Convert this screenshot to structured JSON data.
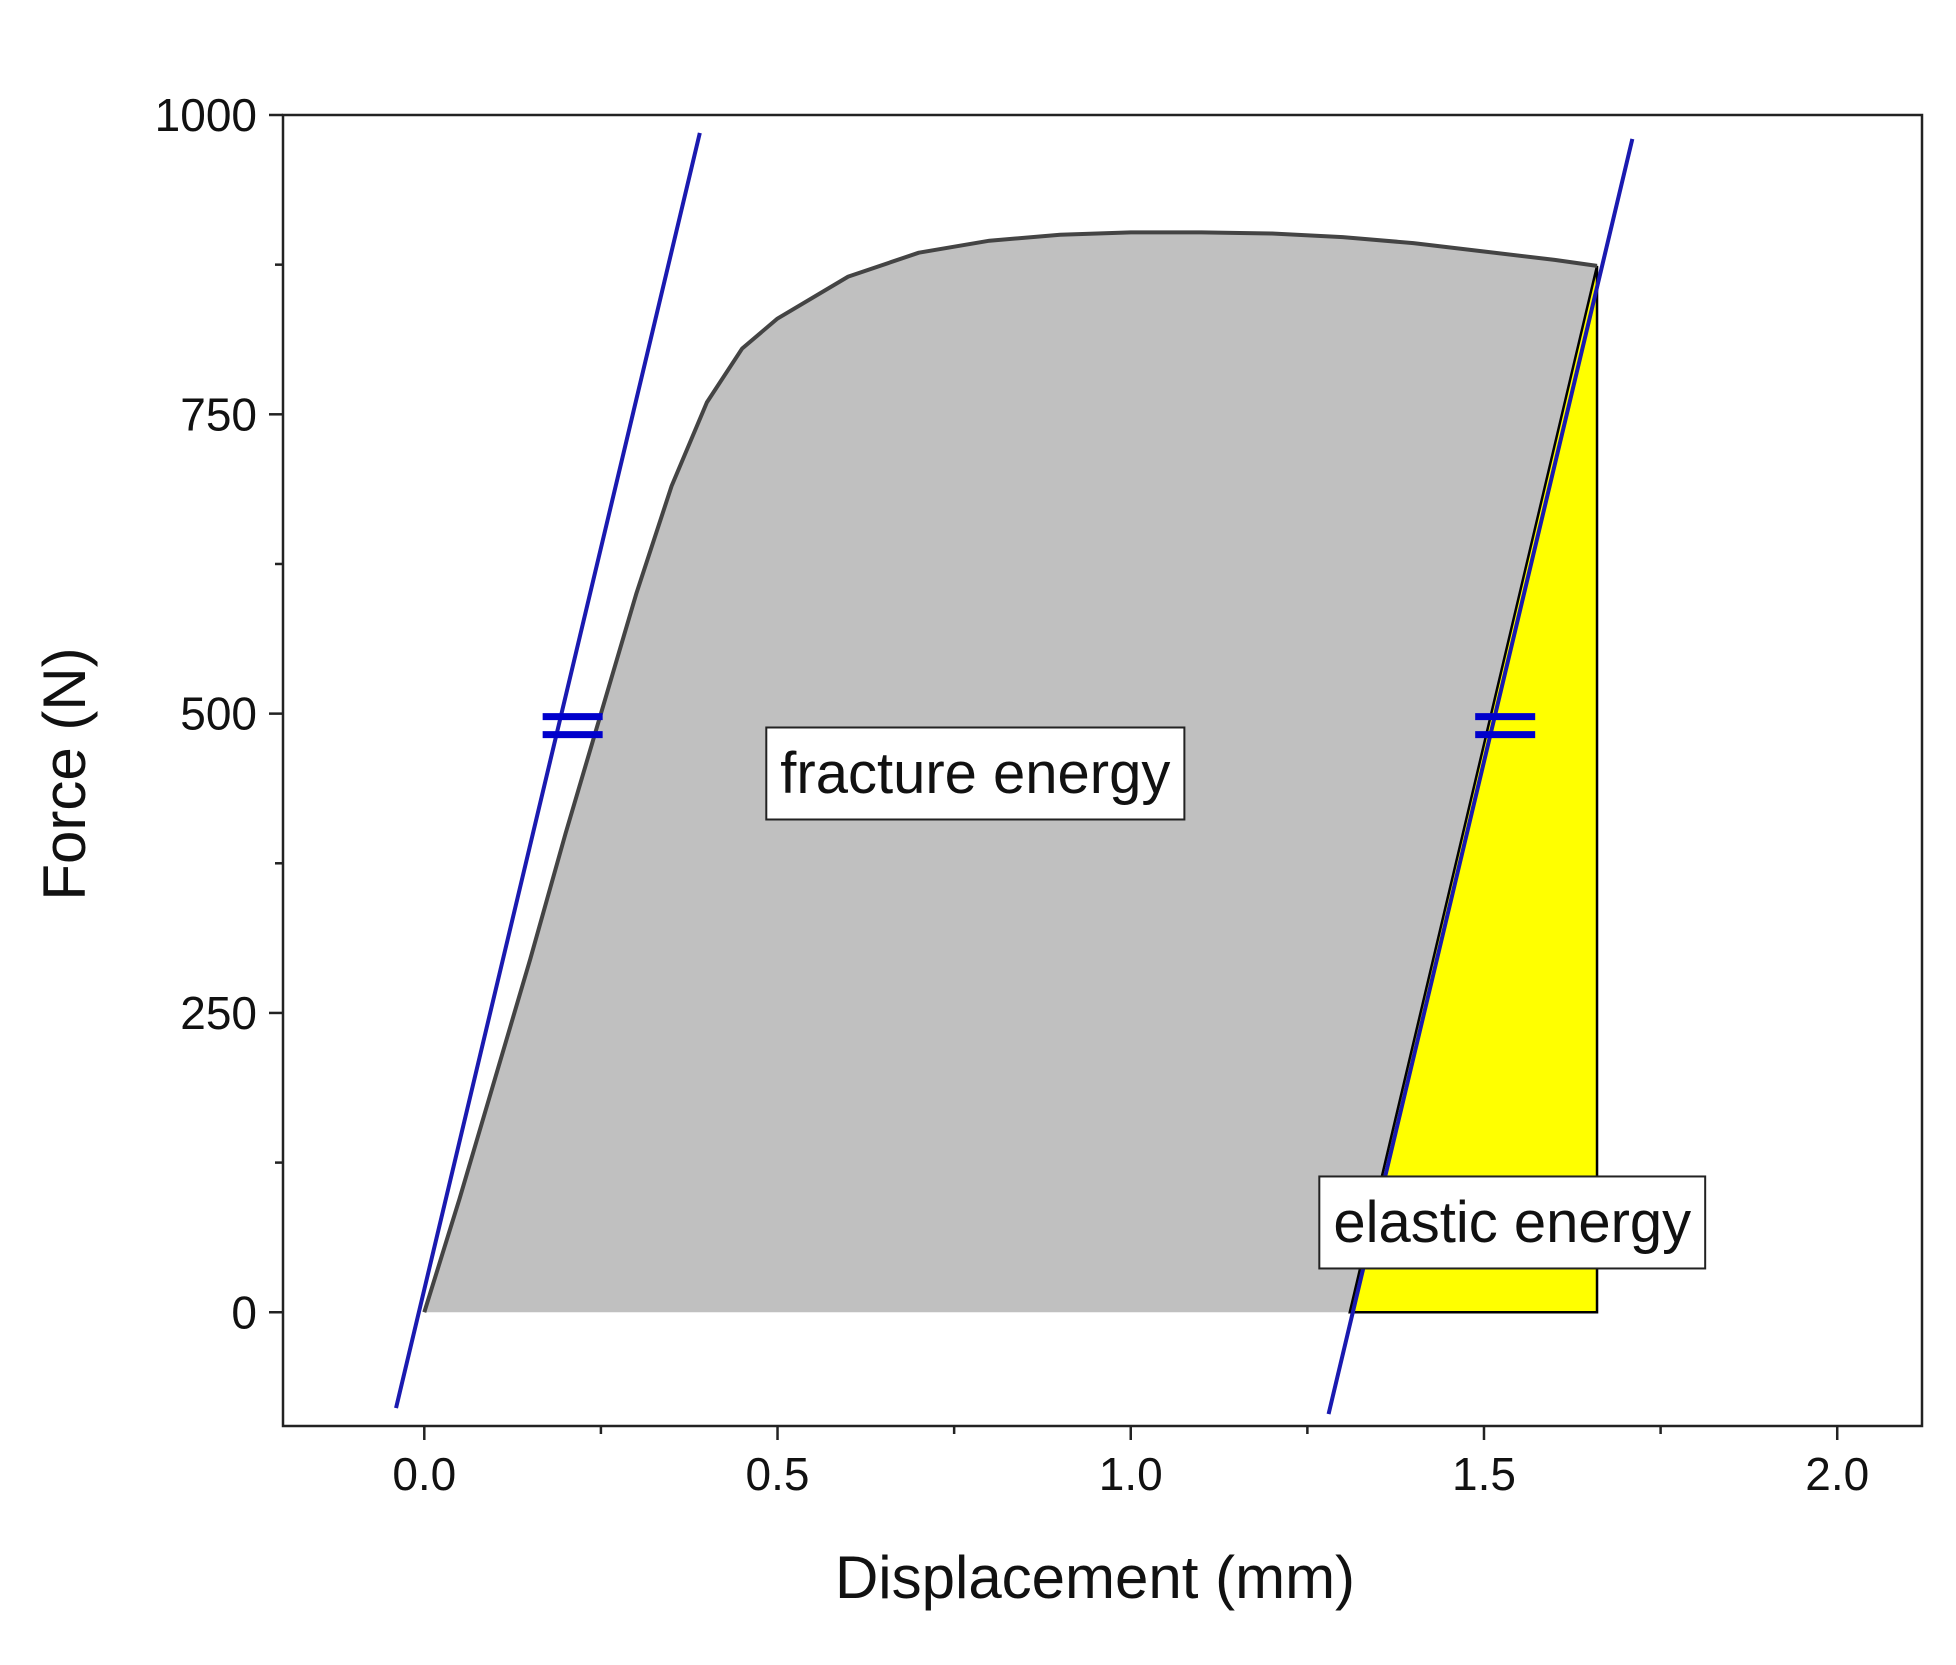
{
  "chart_data": {
    "type": "area",
    "xlabel": "Displacement (mm)",
    "ylabel": "Force (N)",
    "xlim": [
      -0.2,
      2.12
    ],
    "ylim": [
      -95,
      1000
    ],
    "x_ticks": [
      {
        "value": 0.0,
        "label": "0.0"
      },
      {
        "value": 0.5,
        "label": "0.5"
      },
      {
        "value": 1.0,
        "label": "1.0"
      },
      {
        "value": 1.5,
        "label": "1.5"
      },
      {
        "value": 2.0,
        "label": "2.0"
      }
    ],
    "x_minor_ticks": [
      0.25,
      0.75,
      1.25,
      1.75
    ],
    "y_ticks": [
      {
        "value": 0,
        "label": "0"
      },
      {
        "value": 250,
        "label": "250"
      },
      {
        "value": 500,
        "label": "500"
      },
      {
        "value": 750,
        "label": "750"
      },
      {
        "value": 1000,
        "label": "1000"
      }
    ],
    "y_minor_ticks": [
      125,
      375,
      625,
      875
    ],
    "grid": false,
    "colors": {
      "curve": "#444444",
      "fracture_fill": "#c0c0c0",
      "elastic_fill": "#ffff00",
      "elastic_outline": "#000000",
      "unload_lines": "#1a1ab0",
      "marker": "#0000cc"
    },
    "series": [
      {
        "x": [
          0.0,
          0.05,
          0.1,
          0.15,
          0.2,
          0.25,
          0.3,
          0.35,
          0.4,
          0.45,
          0.5,
          0.6,
          0.7,
          0.8,
          0.9,
          1.0,
          1.1,
          1.2,
          1.3,
          1.4,
          1.5,
          1.6,
          1.66
        ],
        "y": [
          0,
          95,
          195,
          295,
          400,
          500,
          600,
          690,
          760,
          805,
          830,
          865,
          885,
          895,
          900,
          902,
          902,
          901,
          898,
          893,
          886,
          879,
          874
        ]
      }
    ],
    "lines": [
      {
        "x": [
          -0.04,
          0.39
        ],
        "y": [
          -80,
          985
        ]
      },
      {
        "x": [
          1.28,
          1.71
        ],
        "y": [
          -85,
          980
        ]
      }
    ],
    "filled_regions": [
      {
        "label": "fracture energy"
      },
      {
        "label": "elastic energy",
        "polygon": {
          "x": [
            1.31,
            1.66,
            1.66
          ],
          "y": [
            0,
            874,
            0
          ]
        }
      }
    ],
    "equal_markers": [
      {
        "x": 0.21,
        "y": 490
      },
      {
        "x": 1.53,
        "y": 490
      }
    ],
    "annotations": [
      {
        "text": "fracture energy",
        "x": 0.78,
        "y": 450
      },
      {
        "text": "elastic energy",
        "x": 1.54,
        "y": 75
      }
    ]
  }
}
